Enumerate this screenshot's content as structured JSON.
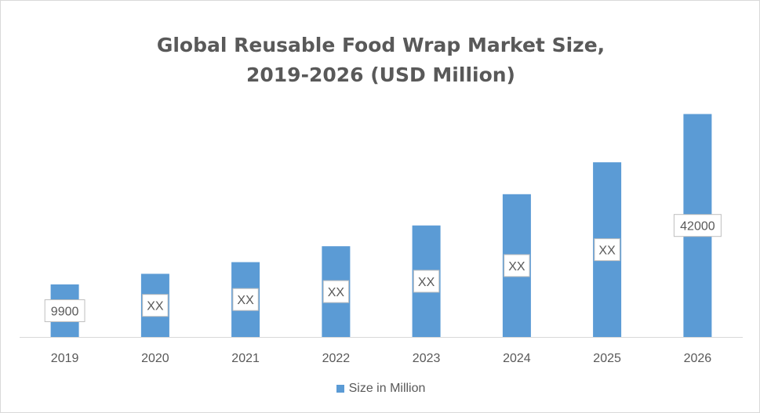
{
  "chart_data": {
    "type": "bar",
    "title_line1": "Global Reusable Food Wrap Market Size,",
    "title_line2": "2019-2026 (USD Million)",
    "categories": [
      "2019",
      "2020",
      "2021",
      "2022",
      "2023",
      "2024",
      "2025",
      "2026"
    ],
    "series": [
      {
        "name": "Size in Million",
        "values": [
          9900,
          11900,
          14100,
          17100,
          21000,
          26900,
          32900,
          42000
        ],
        "data_labels": [
          "9900",
          "XX",
          "XX",
          "XX",
          "XX",
          "XX",
          "XX",
          "42000"
        ]
      }
    ],
    "ylim": [
      0,
      43400
    ],
    "grid": false,
    "legend_position": "bottom",
    "colors": {
      "bar": "#5b9bd5",
      "text": "#595959",
      "axis": "#d9d9d9",
      "label_border": "#bfbfbf"
    }
  }
}
